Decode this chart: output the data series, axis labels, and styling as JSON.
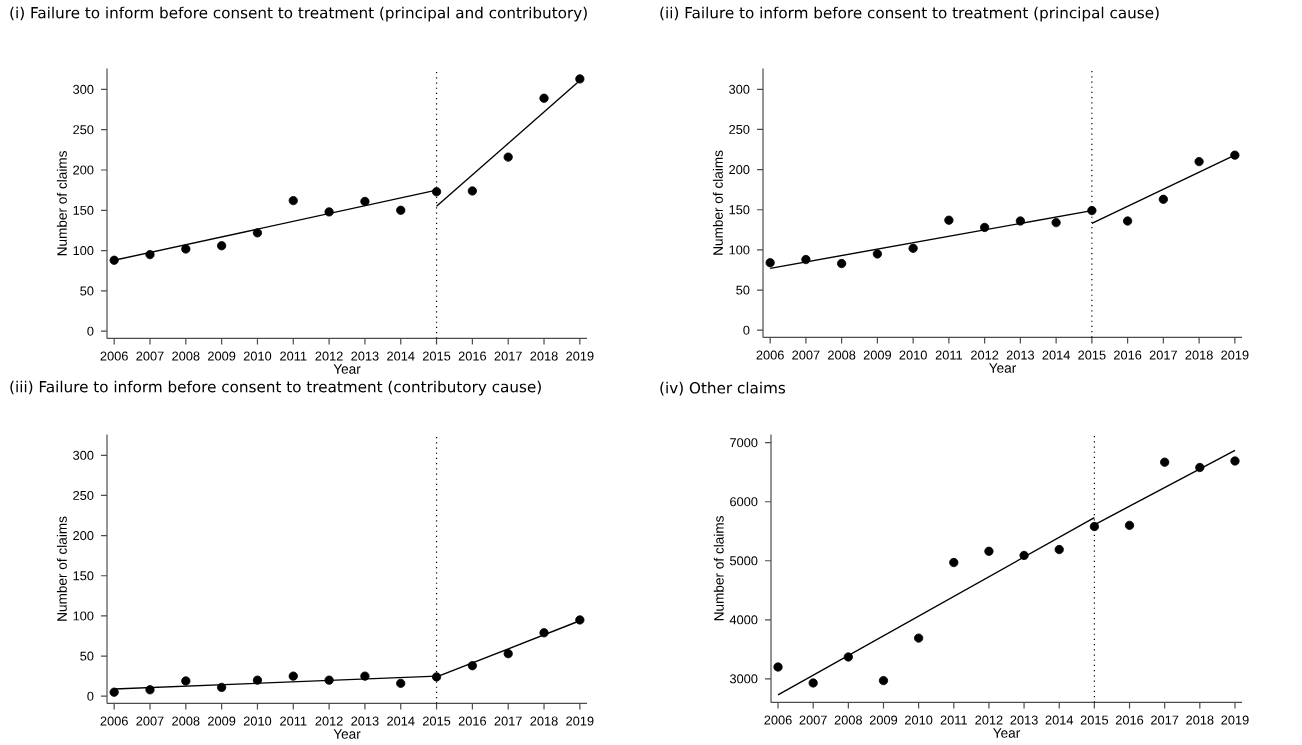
{
  "chart_data": [
    {
      "type": "scatter",
      "title": "(i) Failure to inform before consent to treatment (principal and contributory)",
      "xlabel": "Year",
      "ylabel": "Number of claims",
      "x": [
        2006,
        2007,
        2008,
        2009,
        2010,
        2011,
        2012,
        2013,
        2014,
        2015,
        2016,
        2017,
        2018,
        2019
      ],
      "xlim": [
        2005.8,
        2019.2
      ],
      "ylim": [
        -9,
        326
      ],
      "xticks": [
        2006,
        2007,
        2008,
        2009,
        2010,
        2011,
        2012,
        2013,
        2014,
        2015,
        2016,
        2017,
        2018,
        2019
      ],
      "yticks": [
        0,
        50,
        100,
        150,
        200,
        250,
        300
      ],
      "ref_lines": [
        {
          "axis": "x",
          "value": 2015,
          "line_style": "dotted",
          "color": "#000000"
        }
      ],
      "series": [
        {
          "color": "#000000",
          "marker": "circle",
          "values": [
            88,
            95,
            102,
            106,
            122,
            162,
            148,
            161,
            150,
            173,
            174,
            216,
            289,
            313
          ]
        },
        {
          "type": "line",
          "marker": "none",
          "color": "#000000",
          "x": [
            2006,
            2015
          ],
          "values": [
            88,
            175
          ]
        },
        {
          "type": "line",
          "marker": "none",
          "color": "#000000",
          "x": [
            2015,
            2019
          ],
          "values": [
            155,
            311
          ]
        }
      ]
    },
    {
      "type": "scatter",
      "title": "(ii) Failure to inform before consent to treatment (principal cause)",
      "xlabel": "Year",
      "ylabel": "Number of claims",
      "x": [
        2006,
        2007,
        2008,
        2009,
        2010,
        2011,
        2012,
        2013,
        2014,
        2015,
        2016,
        2017,
        2018,
        2019
      ],
      "xlim": [
        2005.8,
        2019.2
      ],
      "ylim": [
        -9,
        326
      ],
      "xticks": [
        2006,
        2007,
        2008,
        2009,
        2010,
        2011,
        2012,
        2013,
        2014,
        2015,
        2016,
        2017,
        2018,
        2019
      ],
      "yticks": [
        0,
        50,
        100,
        150,
        200,
        250,
        300
      ],
      "ref_lines": [
        {
          "axis": "x",
          "value": 2015,
          "line_style": "dotted",
          "color": "#000000"
        }
      ],
      "series": [
        {
          "color": "#000000",
          "marker": "circle",
          "values": [
            84,
            88,
            83,
            95,
            102,
            137,
            128,
            136,
            134,
            149,
            136,
            163,
            210,
            218
          ]
        },
        {
          "type": "line",
          "marker": "none",
          "color": "#000000",
          "x": [
            2006,
            2015
          ],
          "values": [
            77,
            149
          ]
        },
        {
          "type": "line",
          "marker": "none",
          "color": "#000000",
          "x": [
            2015,
            2019
          ],
          "values": [
            133,
            218
          ]
        }
      ]
    },
    {
      "type": "scatter",
      "title": "(iii) Failure to inform before consent to treatment (contributory cause)",
      "xlabel": "Year",
      "ylabel": "Number of claims",
      "x": [
        2006,
        2007,
        2008,
        2009,
        2010,
        2011,
        2012,
        2013,
        2014,
        2015,
        2016,
        2017,
        2018,
        2019
      ],
      "xlim": [
        2005.8,
        2019.2
      ],
      "ylim": [
        -9,
        326
      ],
      "xticks": [
        2006,
        2007,
        2008,
        2009,
        2010,
        2011,
        2012,
        2013,
        2014,
        2015,
        2016,
        2017,
        2018,
        2019
      ],
      "yticks": [
        0,
        50,
        100,
        150,
        200,
        250,
        300
      ],
      "ref_lines": [
        {
          "axis": "x",
          "value": 2015,
          "line_style": "dotted",
          "color": "#000000"
        }
      ],
      "series": [
        {
          "color": "#000000",
          "marker": "circle",
          "values": [
            5,
            8,
            19,
            11,
            20,
            25,
            20,
            25,
            16,
            24,
            38,
            53,
            79,
            95
          ]
        },
        {
          "type": "line",
          "marker": "none",
          "color": "#000000",
          "x": [
            2006,
            2015
          ],
          "values": [
            9,
            25
          ]
        },
        {
          "type": "line",
          "marker": "none",
          "color": "#000000",
          "x": [
            2015,
            2019
          ],
          "values": [
            24,
            94
          ]
        }
      ]
    },
    {
      "type": "scatter",
      "title": "(iv) Other claims",
      "xlabel": "Year",
      "ylabel": "Number of claims",
      "x": [
        2006,
        2007,
        2008,
        2009,
        2010,
        2011,
        2012,
        2013,
        2014,
        2015,
        2016,
        2017,
        2018,
        2019
      ],
      "xlim": [
        2005.8,
        2019.2
      ],
      "ylim": [
        2600,
        7140
      ],
      "xticks": [
        2006,
        2007,
        2008,
        2009,
        2010,
        2011,
        2012,
        2013,
        2014,
        2015,
        2016,
        2017,
        2018,
        2019
      ],
      "yticks": [
        3000,
        4000,
        5000,
        6000,
        7000
      ],
      "ref_lines": [
        {
          "axis": "x",
          "value": 2015,
          "line_style": "dotted",
          "color": "#000000"
        }
      ],
      "series": [
        {
          "color": "#000000",
          "marker": "circle",
          "values": [
            3200,
            2930,
            3370,
            2970,
            3690,
            4970,
            5160,
            5090,
            5190,
            5580,
            5600,
            6670,
            6580,
            6690
          ]
        },
        {
          "type": "line",
          "marker": "none",
          "color": "#000000",
          "x": [
            2006,
            2015
          ],
          "values": [
            2730,
            5730
          ]
        },
        {
          "type": "line",
          "marker": "none",
          "color": "#000000",
          "x": [
            2015,
            2019
          ],
          "values": [
            5610,
            6870
          ]
        }
      ]
    }
  ]
}
